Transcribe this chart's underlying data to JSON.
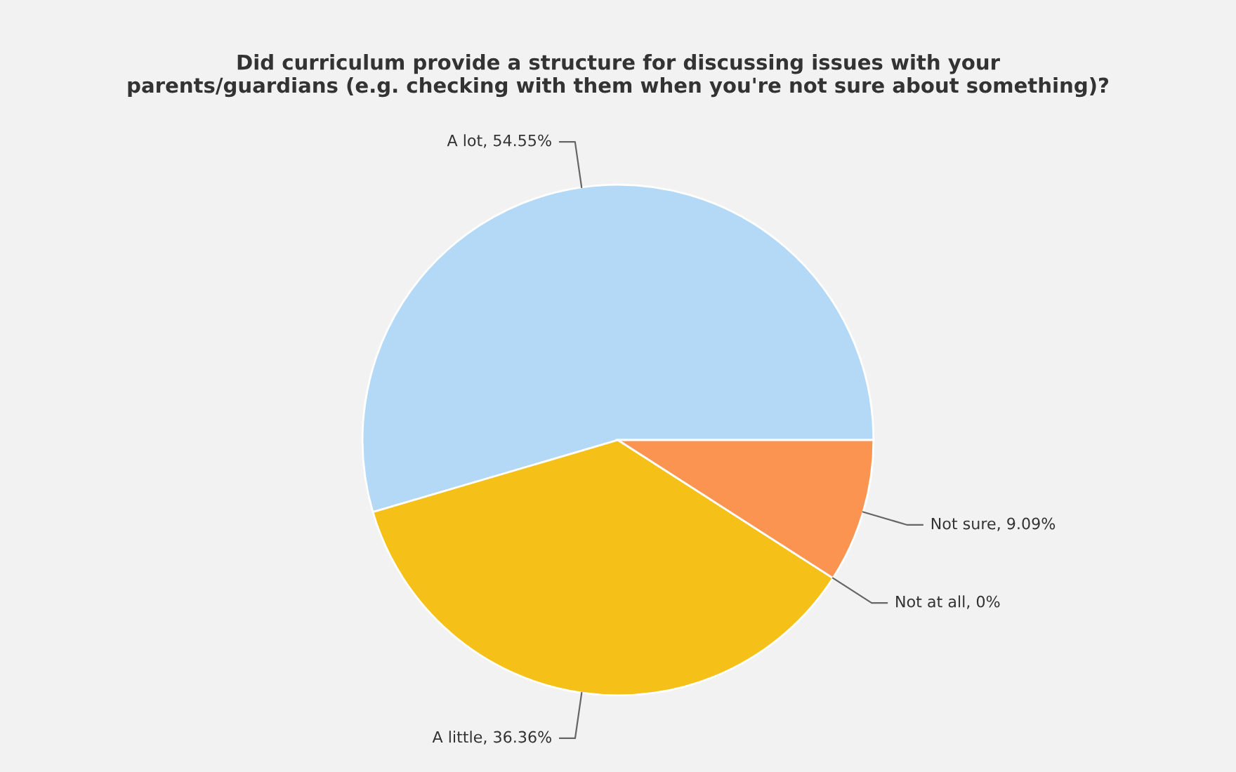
{
  "chart_data": {
    "type": "pie",
    "title": "Did curriculum provide a structure for discussing issues with your\nparents/guardians (e.g. checking with them when you're not sure about something)?",
    "categories": [
      "A lot",
      "A little",
      "Not at all",
      "Not sure"
    ],
    "values": [
      54.55,
      36.36,
      0,
      9.09
    ],
    "colors": [
      "#b3d9f7",
      "#f5c018",
      "#8bbc21",
      "#fb9450"
    ],
    "value_labels": [
      ", 54.55%",
      ", 36.36%",
      ", 0%",
      ", 9.09%"
    ],
    "legend": false
  }
}
